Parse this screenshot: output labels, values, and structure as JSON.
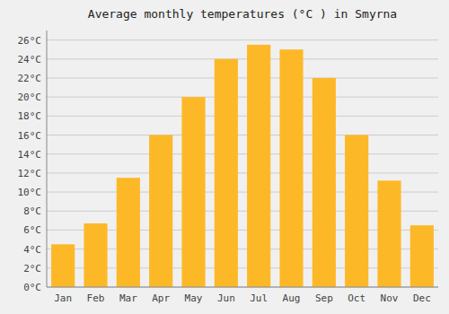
{
  "chart_data": {
    "type": "bar",
    "title": "Average monthly temperatures (°C ) in Smyrna",
    "categories": [
      "Jan",
      "Feb",
      "Mar",
      "Apr",
      "May",
      "Jun",
      "Jul",
      "Aug",
      "Sep",
      "Oct",
      "Nov",
      "Dec"
    ],
    "values": [
      4.5,
      6.7,
      11.5,
      16.0,
      20.0,
      24.0,
      25.5,
      25.0,
      22.0,
      16.0,
      11.2,
      6.5
    ],
    "color": "#FDB827",
    "ylim": [
      0,
      27
    ],
    "yticks": [
      {
        "value": 0,
        "label": "0°C"
      },
      {
        "value": 2,
        "label": "2°C"
      },
      {
        "value": 4,
        "label": "4°C"
      },
      {
        "value": 6,
        "label": "6°C"
      },
      {
        "value": 8,
        "label": "8°C"
      },
      {
        "value": 10,
        "label": "10°C"
      },
      {
        "value": 12,
        "label": "12°C"
      },
      {
        "value": 14,
        "label": "14°C"
      },
      {
        "value": 16,
        "label": "16°C"
      },
      {
        "value": 18,
        "label": "18°C"
      },
      {
        "value": 20,
        "label": "20°C"
      },
      {
        "value": 22,
        "label": "22°C"
      },
      {
        "value": 24,
        "label": "24°C"
      },
      {
        "value": 26,
        "label": "26°C"
      }
    ],
    "grid": true
  }
}
